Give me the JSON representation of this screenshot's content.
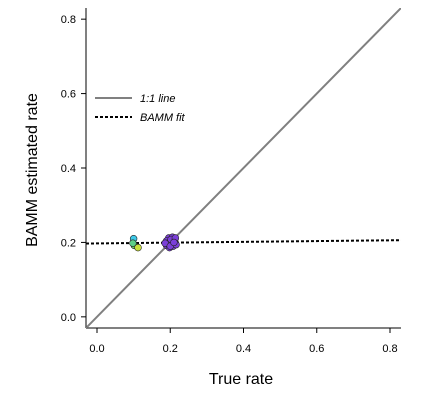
{
  "chart_data": {
    "type": "scatter",
    "xlabel": "True rate",
    "ylabel": "BAMM estimated rate",
    "xlim": [
      -0.03,
      0.83
    ],
    "ylim": [
      -0.03,
      0.83
    ],
    "x_ticks": [
      0.0,
      0.2,
      0.4,
      0.6,
      0.8
    ],
    "y_ticks": [
      0.0,
      0.2,
      0.4,
      0.6,
      0.8
    ],
    "x_tick_labels": [
      "0.0",
      "0.2",
      "0.4",
      "0.6",
      "0.8"
    ],
    "y_tick_labels": [
      "0.0",
      "0.2",
      "0.4",
      "0.6",
      "0.8"
    ],
    "grid": false,
    "legend_position": "upper-left",
    "legend": [
      {
        "label": "1:1 line",
        "style": "solid",
        "color": "#808080"
      },
      {
        "label": "BAMM fit",
        "style": "dashed",
        "color": "#000000"
      }
    ],
    "reference_line": {
      "label": "1:1 line",
      "slope": 1,
      "intercept": 0,
      "color": "#808080"
    },
    "fit_line": {
      "label": "BAMM fit",
      "x": [
        -0.03,
        0.83
      ],
      "y": [
        0.197,
        0.206
      ],
      "color": "#000000"
    },
    "points": [
      {
        "x": 0.1,
        "y": 0.21,
        "color": "#3ec9e8"
      },
      {
        "x": 0.102,
        "y": 0.192,
        "color": "#6cd35a"
      },
      {
        "x": 0.112,
        "y": 0.186,
        "color": "#c8e03a"
      },
      {
        "x": 0.098,
        "y": 0.198,
        "color": "#5ecf86"
      },
      {
        "x": 0.2,
        "y": 0.2,
        "color": "#7b3fd8"
      },
      {
        "x": 0.196,
        "y": 0.212,
        "color": "#7b3fd8"
      },
      {
        "x": 0.206,
        "y": 0.214,
        "color": "#7b3fd8"
      },
      {
        "x": 0.212,
        "y": 0.205,
        "color": "#7b3fd8"
      },
      {
        "x": 0.19,
        "y": 0.204,
        "color": "#7b3fd8"
      },
      {
        "x": 0.19,
        "y": 0.192,
        "color": "#7b3fd8"
      },
      {
        "x": 0.198,
        "y": 0.186,
        "color": "#7b3fd8"
      },
      {
        "x": 0.208,
        "y": 0.19,
        "color": "#7b3fd8"
      },
      {
        "x": 0.216,
        "y": 0.194,
        "color": "#7b3fd8"
      },
      {
        "x": 0.204,
        "y": 0.198,
        "color": "#7b3fd8"
      },
      {
        "x": 0.194,
        "y": 0.198,
        "color": "#7b3fd8"
      },
      {
        "x": 0.202,
        "y": 0.208,
        "color": "#7b3fd8"
      },
      {
        "x": 0.214,
        "y": 0.212,
        "color": "#7b3fd8"
      },
      {
        "x": 0.186,
        "y": 0.198,
        "color": "#7b3fd8"
      },
      {
        "x": 0.2,
        "y": 0.19,
        "color": "#7b3fd8"
      },
      {
        "x": 0.21,
        "y": 0.2,
        "color": "#7b3fd8"
      }
    ]
  }
}
